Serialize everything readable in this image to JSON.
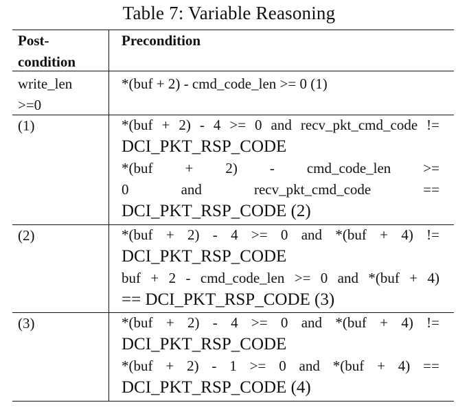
{
  "caption": "Table 7: Variable Reasoning",
  "header": {
    "post_line1": "Post-",
    "post_line2": "condition",
    "pre": "Precondition"
  },
  "rows": [
    {
      "post_line1": "write_len",
      "post_line2": ">=0",
      "pre_line1": "*(buf + 2) - cmd_code_len >= 0 (1)"
    },
    {
      "post": "(1)",
      "pre_line1": "*(buf + 2) - 4 >= 0 and recv_pkt_cmd_code !=",
      "pre_line2": "DCI_PKT_RSP_CODE",
      "pre_line3_tokens": [
        "*(buf",
        "+",
        "2)",
        "-",
        "cmd_code_len",
        ">="
      ],
      "pre_line4_tokens": [
        "0",
        "and",
        "recv_pkt_cmd_code",
        "=="
      ],
      "pre_line5": "DCI_PKT_RSP_CODE (2)"
    },
    {
      "post": "(2)",
      "pre_line1_tokens": [
        "*(buf",
        "+",
        "2)",
        "-",
        "4",
        ">=",
        "0",
        "and",
        "*(buf",
        "+",
        "4)",
        "!="
      ],
      "pre_line2": "DCI_PKT_RSP_CODE",
      "pre_line3": "buf + 2 - cmd_code_len >= 0 and *(buf + 4)",
      "pre_line4": "== DCI_PKT_RSP_CODE (3)"
    },
    {
      "post": "(3)",
      "pre_line1_tokens": [
        "*(buf",
        "+",
        "2)",
        "-",
        "4",
        ">=",
        "0",
        "and",
        "*(buf",
        "+",
        "4)",
        "!="
      ],
      "pre_line2": "DCI_PKT_RSP_CODE",
      "pre_line3_tokens": [
        "*(buf",
        "+",
        "2)",
        "-",
        "1",
        ">=",
        "0",
        "and",
        "*(buf",
        "+",
        "4)",
        "=="
      ],
      "pre_line4": "DCI_PKT_RSP_CODE (4)"
    }
  ]
}
